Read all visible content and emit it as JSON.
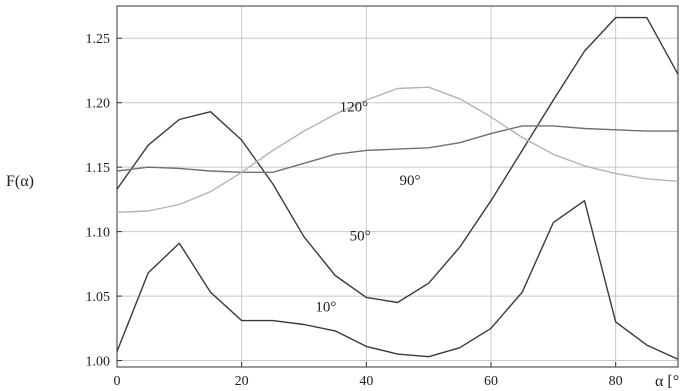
{
  "chart_data": {
    "type": "line",
    "ylabel": "F(α)",
    "xlabel": "α [°",
    "xlim": [
      0,
      90
    ],
    "ylim": [
      0.995,
      1.275
    ],
    "grid": true,
    "x_ticks": [
      0,
      20,
      40,
      60,
      80
    ],
    "y_ticks": [
      1.0,
      1.05,
      1.1,
      1.15,
      1.2,
      1.25
    ],
    "x": [
      0,
      5,
      10,
      15,
      20,
      25,
      30,
      35,
      40,
      45,
      50,
      55,
      60,
      65,
      70,
      75,
      80,
      85,
      90
    ],
    "series": [
      {
        "name": "10°",
        "color": "#3a3a3a",
        "values": [
          1.007,
          1.068,
          1.091,
          1.053,
          1.031,
          1.031,
          1.028,
          1.023,
          1.011,
          1.005,
          1.003,
          1.01,
          1.025,
          1.053,
          1.107,
          1.124,
          1.03,
          1.012,
          1.001
        ]
      },
      {
        "name": "50°",
        "color": "#3a3a3a",
        "values": [
          1.133,
          1.167,
          1.187,
          1.193,
          1.171,
          1.137,
          1.096,
          1.066,
          1.049,
          1.045,
          1.06,
          1.088,
          1.124,
          1.163,
          1.202,
          1.24,
          1.266,
          1.266,
          1.222
        ]
      },
      {
        "name": "90°",
        "color": "#707070",
        "values": [
          1.147,
          1.15,
          1.149,
          1.147,
          1.146,
          1.146,
          1.153,
          1.16,
          1.163,
          1.164,
          1.165,
          1.169,
          1.176,
          1.182,
          1.182,
          1.18,
          1.179,
          1.178,
          1.178
        ]
      },
      {
        "name": "120°",
        "color": "#b4b4b4",
        "values": [
          1.115,
          1.116,
          1.121,
          1.131,
          1.146,
          1.163,
          1.178,
          1.191,
          1.202,
          1.211,
          1.212,
          1.203,
          1.189,
          1.173,
          1.16,
          1.151,
          1.145,
          1.141,
          1.139
        ]
      }
    ],
    "annotations": [
      {
        "text": "10°",
        "x": 33.5,
        "y": 1.038
      },
      {
        "text": "50°",
        "x": 39,
        "y": 1.093
      },
      {
        "text": "90°",
        "x": 47,
        "y": 1.136
      },
      {
        "text": "120°",
        "x": 38,
        "y": 1.193
      }
    ]
  }
}
